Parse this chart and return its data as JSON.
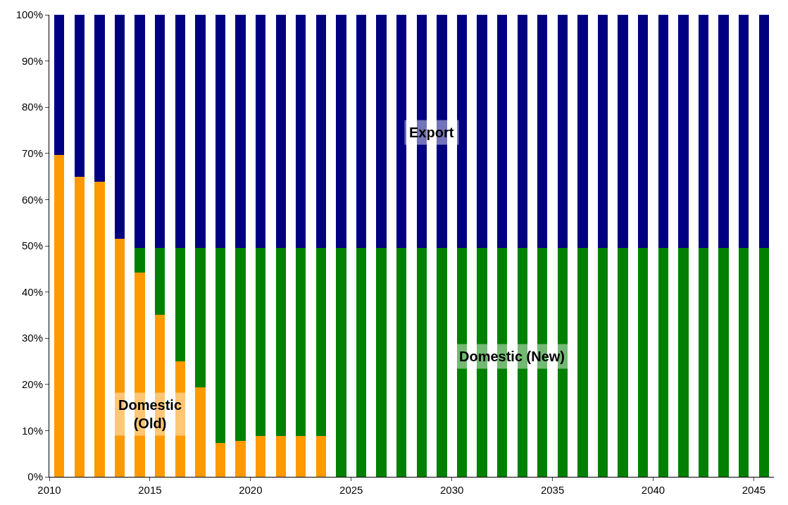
{
  "chart_data": {
    "type": "bar",
    "stacked": true,
    "categories": [
      "2010",
      null,
      null,
      null,
      null,
      "2015",
      null,
      null,
      null,
      null,
      "2020",
      null,
      null,
      null,
      null,
      "2025",
      null,
      null,
      null,
      null,
      "2030",
      null,
      null,
      null,
      null,
      "2035",
      null,
      null,
      null,
      null,
      "2040",
      null,
      null,
      null,
      null,
      "2045"
    ],
    "series": [
      {
        "name": "Domestic (Old)",
        "color": "#ff9900",
        "values": [
          69.7,
          65,
          63.8,
          51.6,
          44.2,
          35,
          25,
          19.4,
          7.3,
          7.8,
          8.8,
          8.8,
          8.8,
          8.8,
          0,
          0,
          0,
          0,
          0,
          0,
          0,
          0,
          0,
          0,
          0,
          0,
          0,
          0,
          0,
          0,
          0,
          0,
          0,
          0,
          0,
          0
        ]
      },
      {
        "name": "Domestic (New)",
        "color": "#008000",
        "values": [
          0,
          0,
          0,
          0,
          5.4,
          14.6,
          24.6,
          30.2,
          42.3,
          41.8,
          40.8,
          40.8,
          40.8,
          40.8,
          49.6,
          49.6,
          49.6,
          49.6,
          49.6,
          49.6,
          49.6,
          49.6,
          49.6,
          49.6,
          49.6,
          49.6,
          49.6,
          49.6,
          49.6,
          49.6,
          49.6,
          49.6,
          49.6,
          49.6,
          49.6,
          49.6
        ]
      },
      {
        "name": "Export",
        "color": "#000080",
        "values": [
          30.3,
          35,
          36.2,
          48.4,
          50.4,
          50.4,
          50.4,
          50.4,
          50.4,
          50.4,
          50.4,
          50.4,
          50.4,
          50.4,
          50.4,
          50.4,
          50.4,
          50.4,
          50.4,
          50.4,
          50.4,
          50.4,
          50.4,
          50.4,
          50.4,
          50.4,
          50.4,
          50.4,
          50.4,
          50.4,
          50.4,
          50.4,
          50.4,
          50.4,
          50.4,
          50.4
        ]
      }
    ],
    "ylim": [
      0,
      100
    ],
    "yticks": [
      {
        "value": 0,
        "label": "0%"
      },
      {
        "value": 10,
        "label": "10%"
      },
      {
        "value": 20,
        "label": "20%"
      },
      {
        "value": 30,
        "label": "30%"
      },
      {
        "value": 40,
        "label": "40%"
      },
      {
        "value": 50,
        "label": "50%"
      },
      {
        "value": 60,
        "label": "60%"
      },
      {
        "value": 70,
        "label": "70%"
      },
      {
        "value": 80,
        "label": "80%"
      },
      {
        "value": 90,
        "label": "90%"
      },
      {
        "value": 100,
        "label": "100%"
      }
    ],
    "legend": false
  }
}
